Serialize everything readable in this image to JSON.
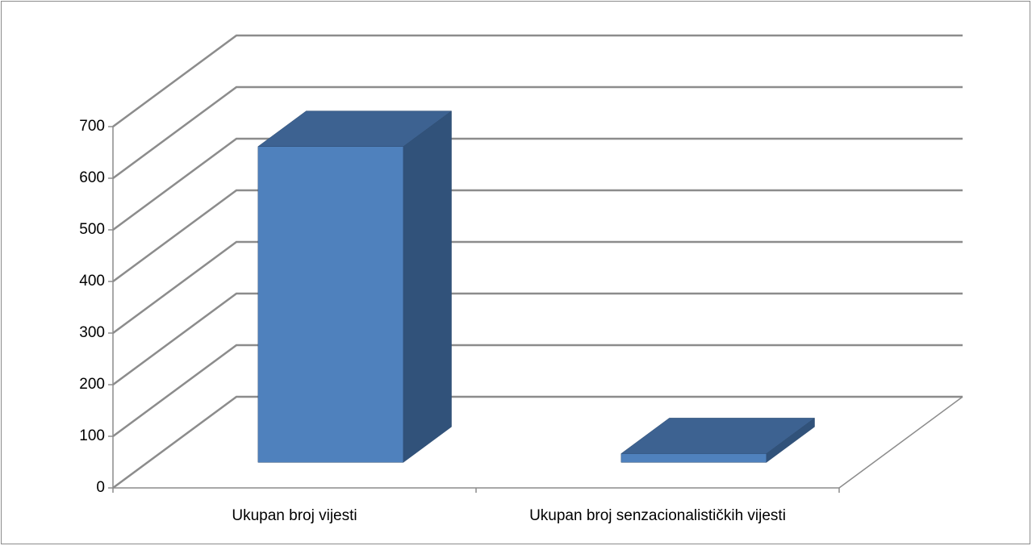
{
  "chart_data": {
    "type": "bar3d",
    "categories": [
      "Ukupan broj vijesti",
      "Ukupan broj senzacionalističkih vijesti"
    ],
    "values": [
      612,
      17
    ],
    "color": "#4f81bd",
    "ylim": [
      0,
      700
    ],
    "yticks": [
      0,
      100,
      200,
      300,
      400,
      500,
      600,
      700
    ],
    "grid": true
  }
}
